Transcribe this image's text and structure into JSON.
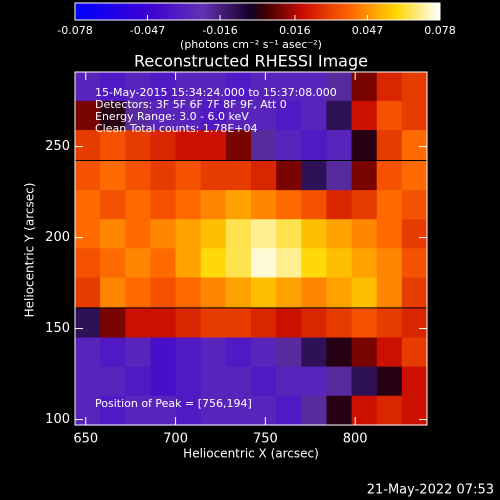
{
  "chart_data": {
    "type": "heatmap",
    "title": "Reconstructed RHESSI Image",
    "annotations": [
      "15-May-2015 15:34:24.000 to 15:37:08.000",
      "Detectors: 3F 5F 6F 7F 8F 9F, Att 0",
      "Energy Range: 3.0 - 6.0 keV",
      "Clean     Total counts: 1.78E+04"
    ],
    "peak_label": "Position of Peak = [756,194]",
    "xlabel": "Heliocentric X (arcsec)",
    "ylabel": "Heliocentric Y (arcsec)",
    "footer": "21-May-2022 07:53",
    "xlim": [
      644,
      840
    ],
    "ylim": [
      97,
      291
    ],
    "xticks": [
      650,
      700,
      750,
      800
    ],
    "yticks": [
      100,
      150,
      200,
      250
    ],
    "x": [
      651,
      665,
      679,
      693,
      707,
      721,
      735,
      749,
      763,
      777,
      791,
      805,
      819,
      833
    ],
    "y": [
      283,
      267,
      251,
      234,
      218,
      202,
      186,
      170,
      153,
      137,
      121,
      105
    ],
    "values": [
      [
        -0.03,
        -0.035,
        -0.03,
        -0.035,
        -0.03,
        -0.03,
        -0.035,
        -0.03,
        -0.03,
        -0.03,
        -0.02,
        0.01,
        0.025,
        0.03
      ],
      [
        0.01,
        0.0,
        -0.02,
        -0.03,
        -0.03,
        -0.035,
        -0.03,
        -0.03,
        -0.035,
        -0.03,
        -0.01,
        0.02,
        0.035,
        0.03
      ],
      [
        0.03,
        0.035,
        0.03,
        0.025,
        0.02,
        0.02,
        0.01,
        -0.02,
        -0.03,
        -0.035,
        -0.03,
        0.0,
        0.03,
        0.04
      ],
      [
        0.035,
        0.04,
        0.035,
        0.03,
        0.035,
        0.03,
        0.03,
        0.025,
        0.01,
        -0.01,
        -0.02,
        0.01,
        0.035,
        0.04
      ],
      [
        0.04,
        0.035,
        0.04,
        0.035,
        0.04,
        0.045,
        0.05,
        0.045,
        0.04,
        0.035,
        0.025,
        0.03,
        0.04,
        0.035
      ],
      [
        0.04,
        0.045,
        0.04,
        0.045,
        0.05,
        0.055,
        0.065,
        0.07,
        0.065,
        0.055,
        0.05,
        0.045,
        0.04,
        0.03
      ],
      [
        0.035,
        0.04,
        0.045,
        0.04,
        0.05,
        0.06,
        0.065,
        0.075,
        0.07,
        0.06,
        0.055,
        0.05,
        0.045,
        0.035
      ],
      [
        0.03,
        0.045,
        0.04,
        0.035,
        0.04,
        0.045,
        0.05,
        0.055,
        0.05,
        0.045,
        0.05,
        0.055,
        0.045,
        0.03
      ],
      [
        -0.01,
        0.01,
        0.02,
        0.02,
        0.025,
        0.03,
        0.03,
        0.025,
        0.02,
        0.025,
        0.03,
        0.035,
        0.03,
        0.025
      ],
      [
        -0.03,
        -0.035,
        -0.03,
        -0.04,
        -0.035,
        -0.03,
        -0.035,
        -0.03,
        -0.02,
        -0.01,
        0.0,
        0.01,
        0.02,
        0.03
      ],
      [
        -0.03,
        -0.03,
        -0.035,
        -0.04,
        -0.035,
        -0.03,
        -0.03,
        -0.035,
        -0.03,
        -0.03,
        -0.02,
        -0.01,
        0.0,
        0.02
      ],
      [
        -0.03,
        -0.035,
        -0.03,
        -0.03,
        -0.035,
        -0.03,
        -0.03,
        -0.03,
        -0.035,
        -0.02,
        0.0,
        0.02,
        0.025,
        0.02
      ]
    ],
    "colorbar": {
      "lim": [
        -0.078,
        0.078
      ],
      "ticks": [
        -0.078,
        -0.047,
        -0.016,
        0.016,
        0.047,
        0.078
      ],
      "label": "(photons cm⁻² s⁻¹ asec⁻²)"
    }
  }
}
